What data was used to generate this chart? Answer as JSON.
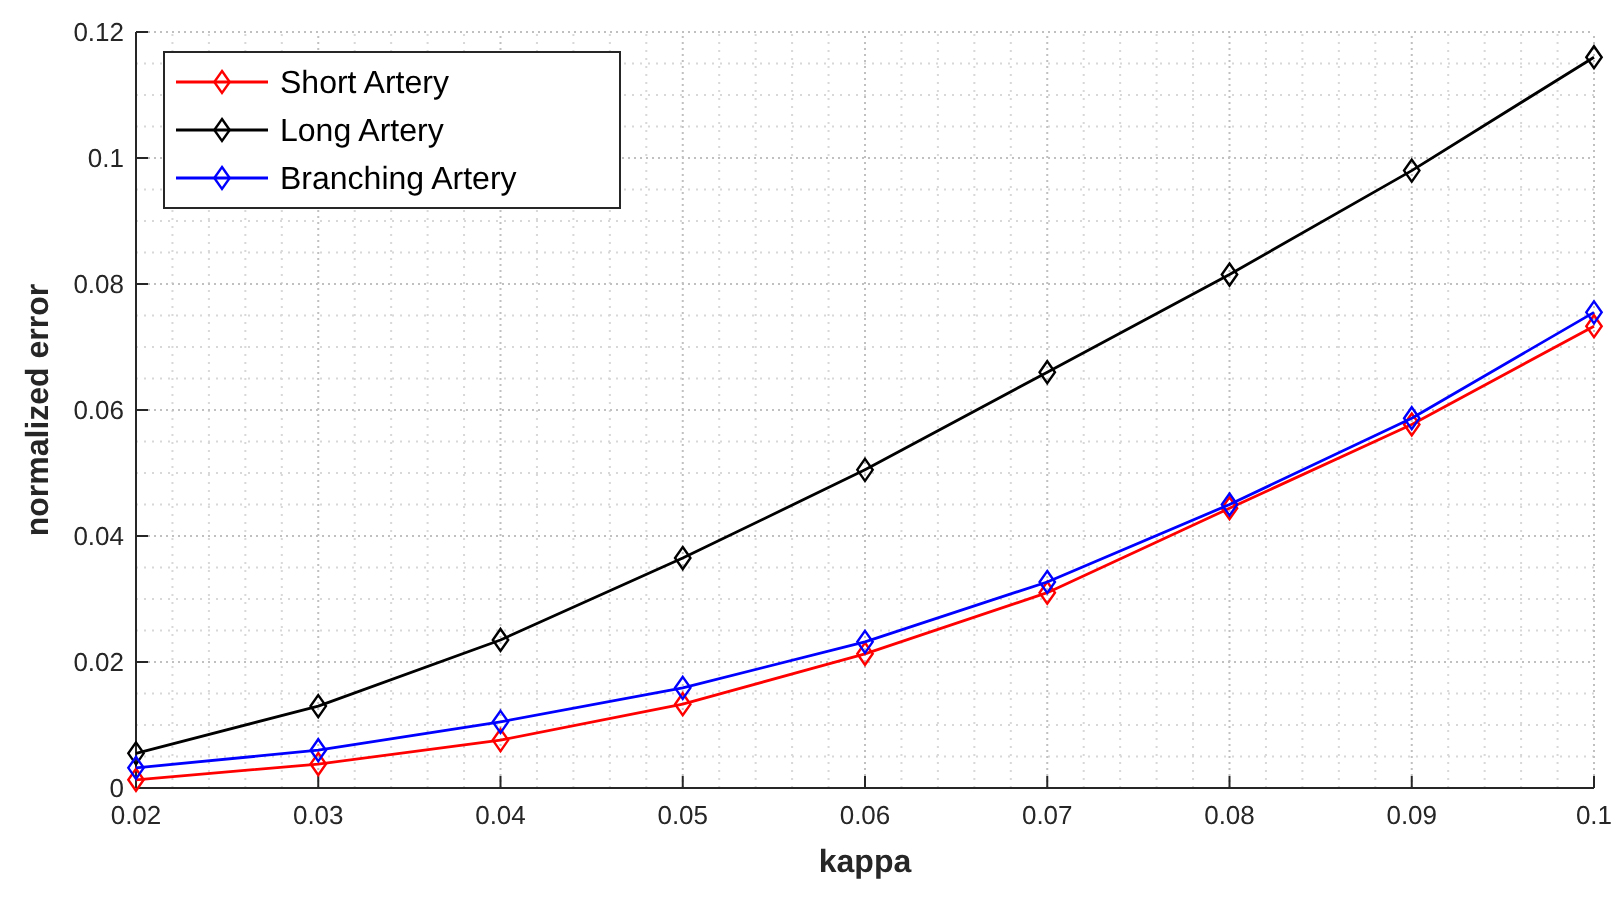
{
  "chart_data": {
    "type": "line",
    "xlabel": "kappa",
    "ylabel": "normalized error",
    "x": [
      0.02,
      0.03,
      0.04,
      0.05,
      0.06,
      0.07,
      0.08,
      0.09,
      0.1
    ],
    "series": [
      {
        "name": "Short Artery",
        "color": "#ff0000",
        "values": [
          0.0013,
          0.0038,
          0.0076,
          0.0133,
          0.0213,
          0.031,
          0.0444,
          0.0577,
          0.0733
        ]
      },
      {
        "name": "Long Artery",
        "color": "#000000",
        "values": [
          0.0055,
          0.013,
          0.0235,
          0.0365,
          0.0505,
          0.066,
          0.0815,
          0.098,
          0.116
        ]
      },
      {
        "name": "Branching Artery",
        "color": "#0000ff",
        "values": [
          0.0032,
          0.006,
          0.0105,
          0.0159,
          0.0232,
          0.0327,
          0.045,
          0.0587,
          0.0755
        ]
      }
    ],
    "xlim": [
      0.02,
      0.1
    ],
    "xticks": [
      0.02,
      0.03,
      0.04,
      0.05,
      0.06,
      0.07,
      0.08,
      0.09,
      0.1
    ],
    "ylim": [
      0,
      0.12
    ],
    "yticks": [
      0,
      0.02,
      0.04,
      0.06,
      0.08,
      0.1,
      0.12
    ],
    "grid": true,
    "legend": "top left",
    "marker": "diamond",
    "line_style": "solid"
  }
}
